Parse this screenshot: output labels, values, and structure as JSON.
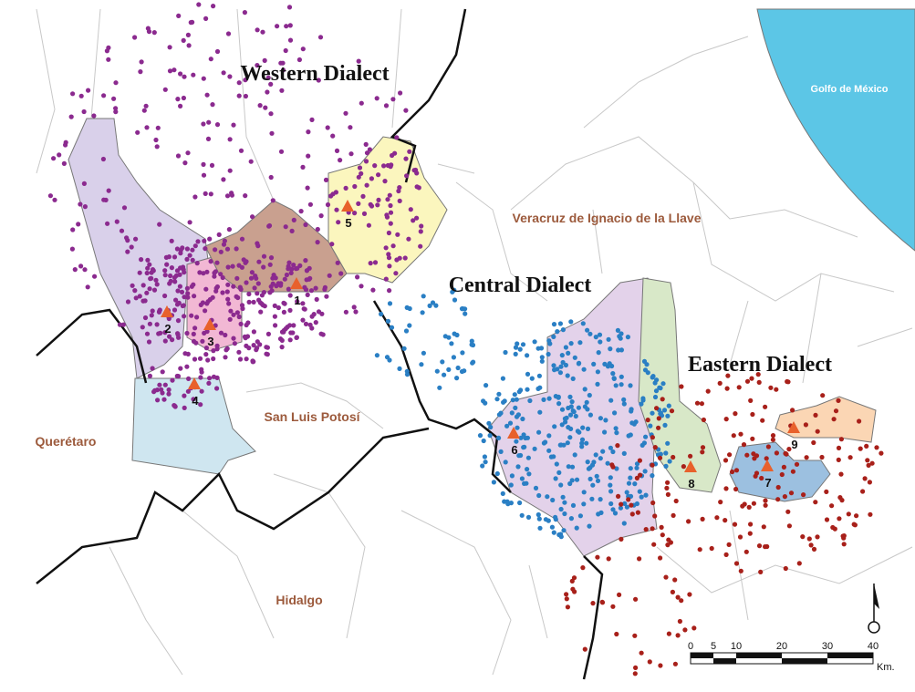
{
  "labels": {
    "dialects": [
      "Western Dialect",
      "Central Dialect",
      "Eastern Dialect"
    ],
    "states": [
      "Veracruz de Ignacio de la Llave",
      "San Luis Potosí",
      "Querétaro",
      "Hidalgo"
    ],
    "sea": "Golfo de México"
  },
  "sites": [
    "1",
    "2",
    "3",
    "4",
    "5",
    "6",
    "7",
    "8",
    "9"
  ],
  "scale": {
    "ticks": [
      0,
      5,
      10,
      20,
      30,
      40
    ],
    "unit": "Km."
  }
}
